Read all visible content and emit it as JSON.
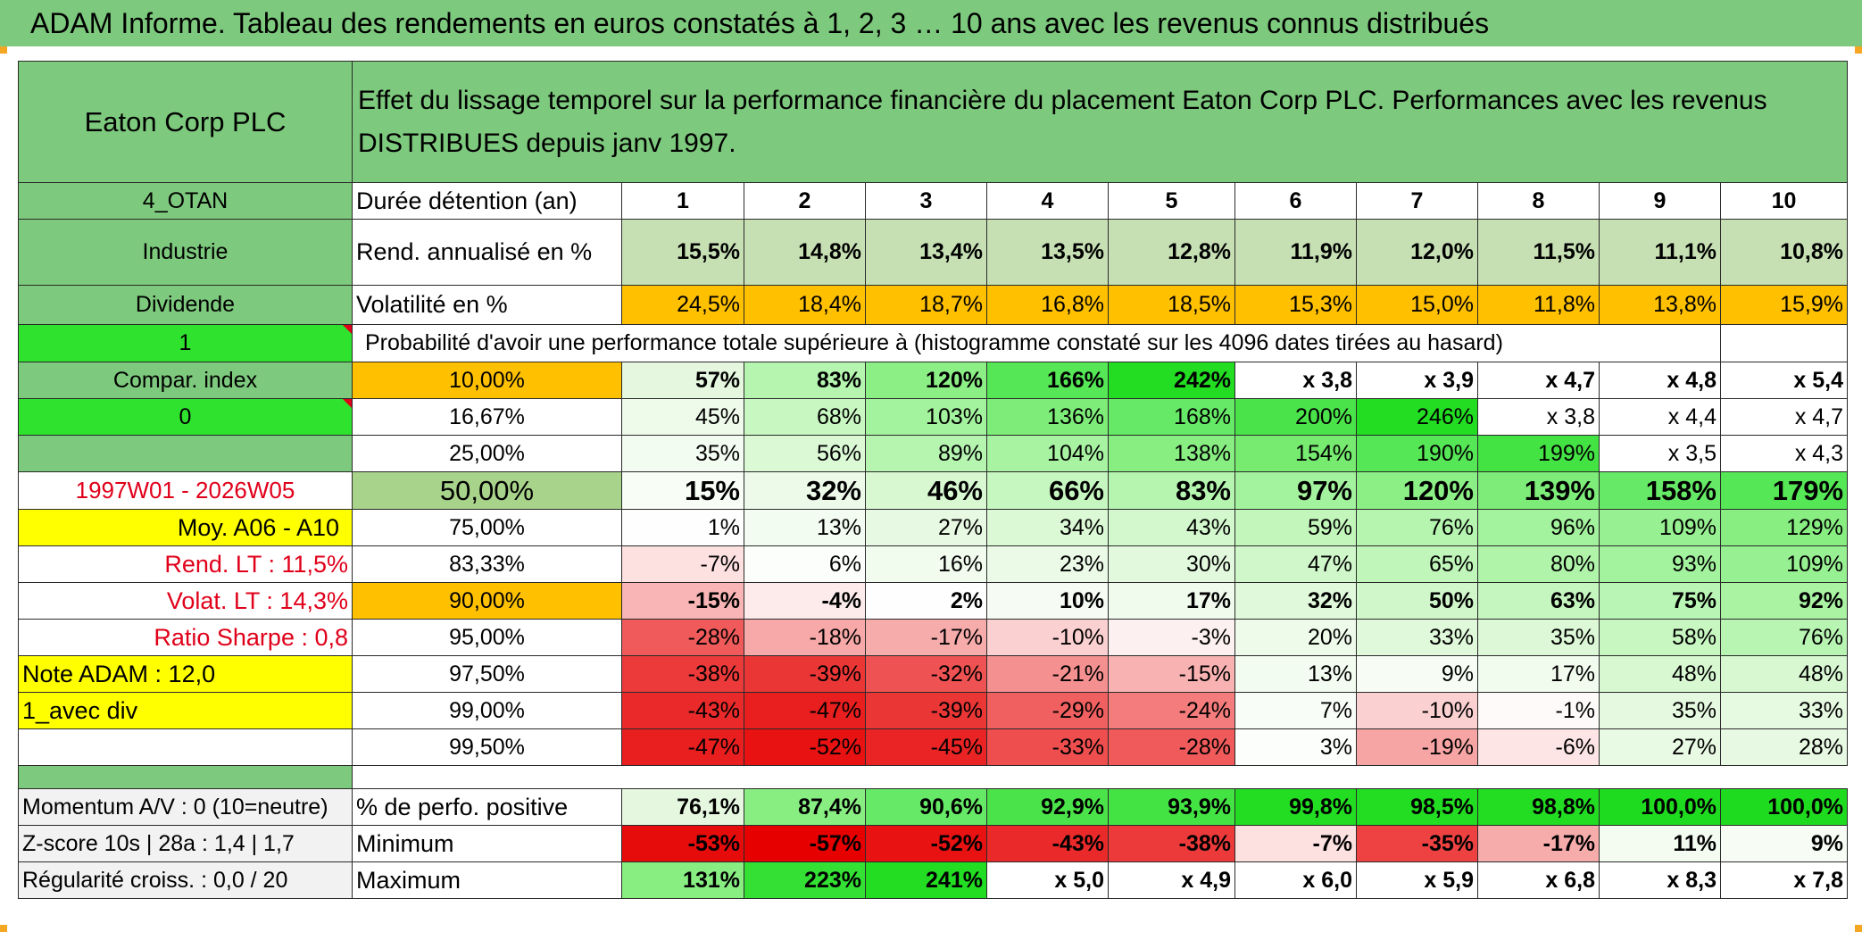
{
  "title": "ADAM Informe. Tableau des rendements en euros constatés à 1, 2, 3 … 10 ans avec les revenus connus distribués",
  "company": "Eaton Corp PLC",
  "description": "Effet du lissage temporel sur la performance financière du placement Eaton Corp PLC. Performances avec les revenus DISTRIBUES depuis janv 1997.",
  "left_panel": {
    "code": "4_OTAN",
    "sector": "Industrie",
    "type": "Dividende",
    "flag1": "1",
    "compar_index": "Compar. index",
    "flag0": "0",
    "period": "1997W01 - 2026W05",
    "moy": "Moy. A06 - A10",
    "rend_lt": "Rend. LT :   11,5%",
    "volat_lt": "Volat. LT :   14,3%",
    "sharpe": "Ratio Sharpe :    0,8",
    "note": "Note ADAM : 12,0",
    "avec_div": "1_avec div"
  },
  "header_row": {
    "label": "Durée détention (an)",
    "years": [
      "1",
      "2",
      "3",
      "4",
      "5",
      "6",
      "7",
      "8",
      "9",
      "10"
    ]
  },
  "rend_row": {
    "label": "Rend. annualisé en %",
    "values": [
      "15,5%",
      "14,8%",
      "13,4%",
      "13,5%",
      "12,8%",
      "11,9%",
      "12,0%",
      "11,5%",
      "11,1%",
      "10,8%"
    ]
  },
  "volat_row": {
    "label": "Volatilité en %",
    "values": [
      "24,5%",
      "18,4%",
      "18,7%",
      "16,8%",
      "18,5%",
      "15,3%",
      "15,0%",
      "11,8%",
      "13,8%",
      "15,9%"
    ]
  },
  "prob_title": "Probabilité d'avoir une performance totale supérieure à (histogramme constaté sur les 4096 dates tirées au hasard)",
  "prob_rows": [
    {
      "pct": "10,00%",
      "values": [
        "57%",
        "83%",
        "120%",
        "166%",
        "242%",
        "x 3,8",
        "x 3,9",
        "x 4,7",
        "x 4,8",
        "x 5,4"
      ],
      "colors": [
        "#e6f7e0",
        "#b5f5b0",
        "#8cef86",
        "#55e755",
        "#22dd22",
        "#ffffff",
        "#ffffff",
        "#ffffff",
        "#ffffff",
        "#ffffff"
      ]
    },
    {
      "pct": "16,67%",
      "values": [
        "45%",
        "68%",
        "103%",
        "136%",
        "168%",
        "200%",
        "246%",
        "x 3,8",
        "x 4,4",
        "x 4,7"
      ],
      "colors": [
        "#eefaea",
        "#c8f7c2",
        "#a3f29d",
        "#7dec78",
        "#66e966",
        "#4ae44a",
        "#22dd22",
        "#ffffff",
        "#ffffff",
        "#ffffff"
      ]
    },
    {
      "pct": "25,00%",
      "values": [
        "35%",
        "56%",
        "89%",
        "104%",
        "138%",
        "154%",
        "190%",
        "199%",
        "x 3,5",
        "x 4,3"
      ],
      "colors": [
        "#f3fcf0",
        "#dcf9d6",
        "#b5f5b0",
        "#a8f3a2",
        "#88ee82",
        "#76eb70",
        "#55e755",
        "#44e344",
        "#ffffff",
        "#ffffff"
      ]
    },
    {
      "pct": "50,00%",
      "values": [
        "15%",
        "32%",
        "46%",
        "66%",
        "83%",
        "97%",
        "120%",
        "139%",
        "158%",
        "179%"
      ],
      "colors": [
        "#f8fdf6",
        "#edfae9",
        "#d8f8d2",
        "#c7f7c0",
        "#b5f5b0",
        "#a3f29d",
        "#8cef86",
        "#7dec78",
        "#66e966",
        "#55e755"
      ]
    },
    {
      "pct": "75,00%",
      "values": [
        "1%",
        "13%",
        "27%",
        "34%",
        "43%",
        "59%",
        "76%",
        "96%",
        "109%",
        "129%"
      ],
      "colors": [
        "#fefefe",
        "#f3fcf0",
        "#e8f9e3",
        "#dcf9d6",
        "#d3f8cd",
        "#c2f6bb",
        "#b5f5b0",
        "#a3f29d",
        "#97f091",
        "#88ee82"
      ]
    },
    {
      "pct": "83,33%",
      "values": [
        "-7%",
        "6%",
        "16%",
        "23%",
        "30%",
        "47%",
        "65%",
        "80%",
        "93%",
        "109%"
      ],
      "colors": [
        "#fde0e0",
        "#fbfefa",
        "#f1fbee",
        "#ebfae7",
        "#e3f9de",
        "#d0f7ca",
        "#c0f6b9",
        "#b0f4aa",
        "#a3f29d",
        "#97f091"
      ]
    },
    {
      "pct": "90,00%",
      "values": [
        "-15%",
        "-4%",
        "2%",
        "10%",
        "17%",
        "32%",
        "50%",
        "63%",
        "75%",
        "92%"
      ],
      "colors": [
        "#f9b5b5",
        "#fdeaea",
        "#fefefe",
        "#f6fcf4",
        "#f0fbed",
        "#e1f9db",
        "#d0f7ca",
        "#c5f6bf",
        "#b9f5b4",
        "#a9f3a3"
      ]
    },
    {
      "pct": "95,00%",
      "values": [
        "-28%",
        "-18%",
        "-17%",
        "-10%",
        "-3%",
        "20%",
        "33%",
        "35%",
        "58%",
        "76%"
      ],
      "colors": [
        "#f05a5a",
        "#f7a8a8",
        "#f7acac",
        "#fbd0d0",
        "#fdf0f0",
        "#eefaea",
        "#e0f9da",
        "#ddf8d7",
        "#c8f7c2",
        "#b8f5b3"
      ]
    },
    {
      "pct": "97,50%",
      "values": [
        "-38%",
        "-39%",
        "-32%",
        "-21%",
        "-15%",
        "13%",
        "9%",
        "17%",
        "48%",
        "48%"
      ],
      "colors": [
        "#ec3a3a",
        "#eb3636",
        "#ef5252",
        "#f59090",
        "#f8b2b2",
        "#f3fcf0",
        "#f7fdf5",
        "#f1fbee",
        "#d8f8d2",
        "#d8f8d2"
      ]
    },
    {
      "pct": "99,00%",
      "values": [
        "-43%",
        "-47%",
        "-39%",
        "-29%",
        "-24%",
        "7%",
        "-10%",
        "-1%",
        "35%",
        "33%"
      ],
      "colors": [
        "#ea2a2a",
        "#e91e1e",
        "#eb3636",
        "#f06060",
        "#f47c7c",
        "#f9fdf8",
        "#fbd0d0",
        "#fefafa",
        "#e4f9df",
        "#e6f9e1"
      ]
    },
    {
      "pct": "99,50%",
      "values": [
        "-47%",
        "-52%",
        "-45%",
        "-33%",
        "-28%",
        "3%",
        "-19%",
        "-6%",
        "27%",
        "28%"
      ],
      "colors": [
        "#e91e1e",
        "#e81212",
        "#ea2424",
        "#ee4e4e",
        "#f05a5a",
        "#fcfefb",
        "#f7a4a4",
        "#fde5e5",
        "#e9faE4",
        "#e8f9e3"
      ]
    }
  ],
  "bottom": {
    "momentum": "Momentum A/V : 0 (10=neutre)",
    "zscore": "Z-score 10s | 28a : 1,4 | 1,7",
    "regularite": "Régularité croiss. : 0,0 / 20",
    "pos_label": "% de perfo. positive",
    "pos_values": [
      "76,1%",
      "87,4%",
      "90,6%",
      "92,9%",
      "93,9%",
      "99,8%",
      "98,5%",
      "98,8%",
      "100,0%",
      "100,0%"
    ],
    "pos_colors": [
      "#e6f7e0",
      "#88ee82",
      "#66e966",
      "#4ae44a",
      "#44e344",
      "#22dd22",
      "#22dd22",
      "#22dd22",
      "#1fdb1f",
      "#1fdb1f"
    ],
    "min_label": "Minimum",
    "min_values": [
      "-53%",
      "-57%",
      "-52%",
      "-43%",
      "-38%",
      "-7%",
      "-35%",
      "-17%",
      "11%",
      "9%"
    ],
    "min_colors": [
      "#e60c0c",
      "#e60000",
      "#e81212",
      "#ea2a2a",
      "#ec3a3a",
      "#fde0e0",
      "#ee4242",
      "#f7acac",
      "#f4fcf2",
      "#f7fdf5"
    ],
    "max_label": "Maximum",
    "max_values": [
      "131%",
      "223%",
      "241%",
      "x 5,0",
      "x 4,9",
      "x 6,0",
      "x 5,9",
      "x 6,8",
      "x 8,3",
      "x 7,8"
    ],
    "max_colors": [
      "#88ee82",
      "#33e033",
      "#22dd22",
      "#ffffff",
      "#ffffff",
      "#ffffff",
      "#ffffff",
      "#ffffff",
      "#ffffff",
      "#ffffff"
    ]
  },
  "colors": {
    "header_green": "#7dc97d",
    "light_green": "#a8d38a",
    "orange": "#ffc000",
    "yellow": "#ffff00",
    "bright_green": "#2ee22e",
    "red_text": "#e0001a"
  }
}
